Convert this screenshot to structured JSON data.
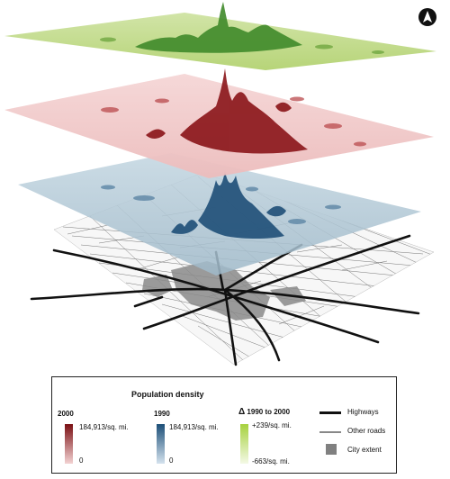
{
  "legend": {
    "title": "Population density",
    "y2000": {
      "header": "2000",
      "max_label": "184,913/sq. mi.",
      "min_label": "0",
      "color_high": "#7a0f13",
      "color_low": "#f3d2d2"
    },
    "y1990": {
      "header": "1990",
      "max_label": "184,913/sq. mi.",
      "min_label": "0",
      "color_high": "#1c4f78",
      "color_low": "#d4e2ee"
    },
    "change": {
      "delta_symbol": "Δ",
      "header": "1990 to 2000",
      "max_label": "+239/sq. mi.",
      "min_label": "-663/sq. mi.",
      "color_high": "#a6d13d",
      "color_low": "#f4f9e6"
    },
    "highways": "Highways",
    "other_roads": "Other roads",
    "city_extent": "City extent"
  },
  "colors": {
    "layer_change": "#b6d67e",
    "layer_2000": "#f0c9c9",
    "layer_1990": "#a9c1cf",
    "highway": "#111111",
    "road": "#888888",
    "city": "#8a8a8a"
  },
  "icons": {
    "north_arrow": "north-arrow-icon"
  }
}
